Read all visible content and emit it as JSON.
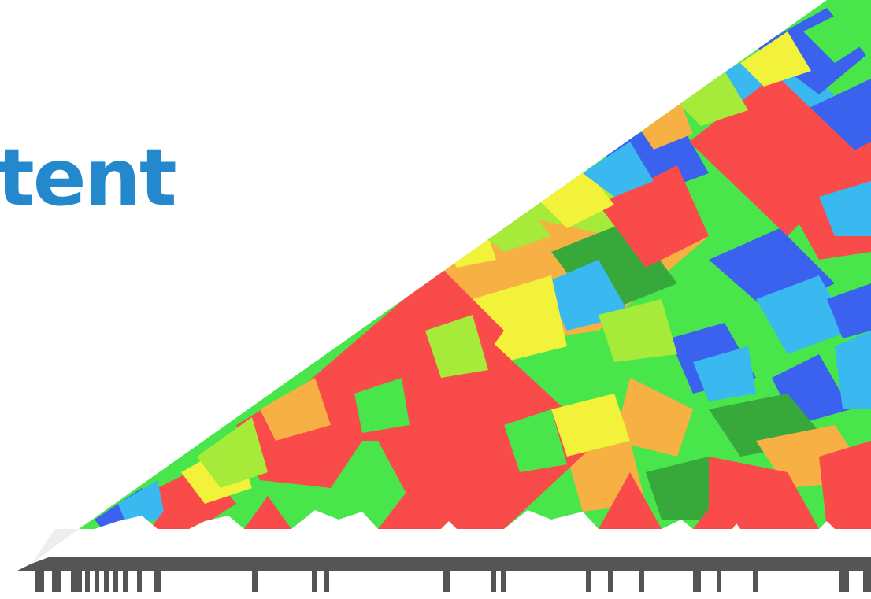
{
  "title": {
    "text": "tent",
    "color": "#2488cc"
  },
  "palette": {
    "red": "#fa4b4b",
    "orange": "#f7b043",
    "yellow": "#f2f23a",
    "lime": "#a6ea3a",
    "green": "#48e64a",
    "dark_green": "#37a83a",
    "light_blue": "#3ab8f0",
    "blue": "#3b62ee",
    "track": "#555555"
  }
}
